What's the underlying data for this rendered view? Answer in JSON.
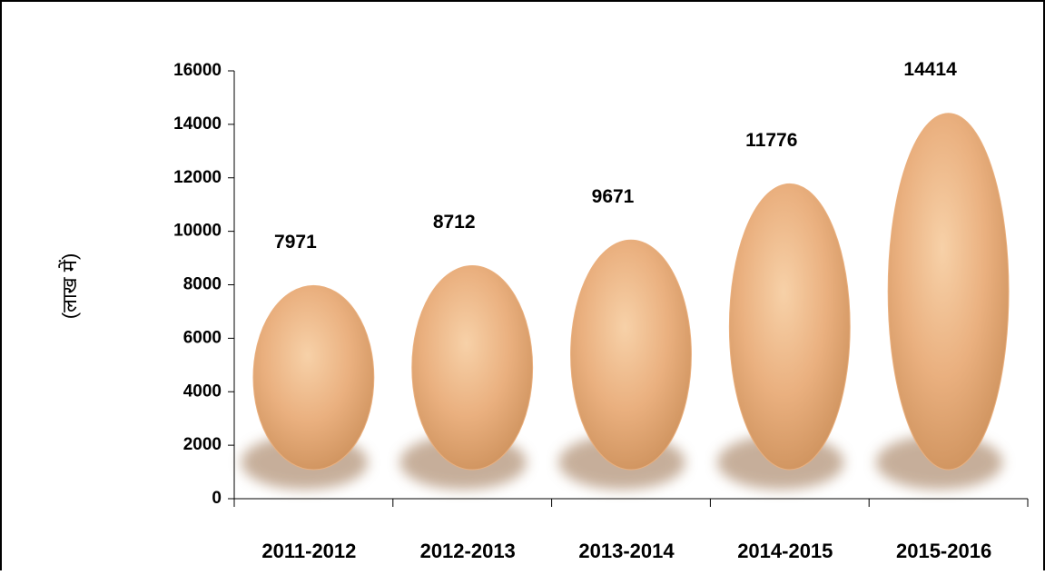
{
  "chart_data": {
    "type": "egg-bar",
    "y_label": "(लाख में)",
    "categories": [
      "2011-2012",
      "2012-2013",
      "2013-2014",
      "2014-2015",
      "2015-2016"
    ],
    "values": [
      7971,
      8712,
      9671,
      11776,
      14414
    ],
    "color": "#eab07f",
    "ylim": [
      0,
      16000
    ],
    "yticks": [
      0,
      2000,
      4000,
      6000,
      8000,
      10000,
      12000,
      14000,
      16000
    ],
    "grid": false
  }
}
